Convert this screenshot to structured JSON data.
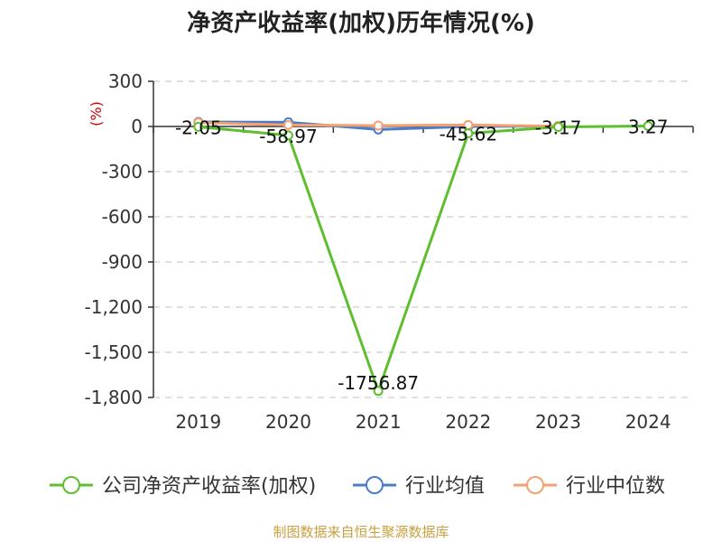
{
  "chart_data": {
    "type": "line",
    "title": "净资产收益率(加权)历年情况(%)",
    "y_unit_label": "(%)",
    "categories": [
      "2019",
      "2020",
      "2021",
      "2022",
      "2023",
      "2024"
    ],
    "ylim": [
      -1800,
      300
    ],
    "y_ticks": [
      300,
      0,
      -300,
      -600,
      -900,
      -1200,
      -1500,
      -1800
    ],
    "y_tick_labels": [
      "300",
      "0",
      "-300",
      "-600",
      "-900",
      "-1,200",
      "-1,500",
      "-1,800"
    ],
    "grid": true,
    "legend_position": "bottom",
    "series": [
      {
        "name": "公司净资产收益率(加权)",
        "color": "#5dbf2f",
        "values": [
          -2.05,
          -58.97,
          -1756.87,
          -45.62,
          -3.17,
          3.27
        ],
        "labels": [
          "-2.05",
          "-58.97",
          "-1756.87",
          "-45.62",
          "-3.17",
          "3.27"
        ]
      },
      {
        "name": "行业均值",
        "color": "#4a7cc9",
        "values": [
          30,
          28,
          -20,
          0,
          3,
          null
        ]
      },
      {
        "name": "行业中位数",
        "color": "#f4a070",
        "values": [
          26,
          10,
          6,
          10,
          2,
          null
        ]
      }
    ]
  },
  "source_note": "制图数据来自恒生聚源数据库"
}
